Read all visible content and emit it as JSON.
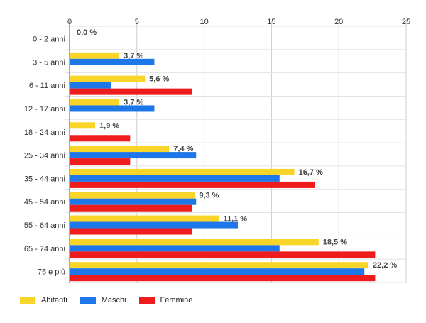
{
  "chart_data": {
    "type": "bar",
    "orientation": "horizontal",
    "categories": [
      "0 - 2 anni",
      "3 - 5 anni",
      "6 - 11 anni",
      "12 - 17 anni",
      "18 - 24 anni",
      "25 - 34 anni",
      "35 - 44 anni",
      "45 - 54 anni",
      "55 - 64 anni",
      "65 - 74 anni",
      "75 e più"
    ],
    "series": [
      {
        "name": "Abitanti",
        "color": "#f9d52a",
        "values": [
          0.0,
          3.7,
          5.6,
          3.7,
          1.9,
          7.4,
          16.7,
          9.3,
          11.1,
          18.5,
          22.2
        ]
      },
      {
        "name": "Maschi",
        "color": "#1e77e8",
        "values": [
          0.0,
          6.3,
          3.1,
          6.3,
          0.0,
          9.4,
          15.6,
          9.4,
          12.5,
          15.6,
          21.9
        ]
      },
      {
        "name": "Femmine",
        "color": "#ee1c1c",
        "values": [
          0.0,
          0.0,
          9.1,
          0.0,
          4.5,
          4.5,
          18.2,
          9.1,
          9.1,
          22.7,
          22.7
        ]
      }
    ],
    "data_labels": [
      "0,0 %",
      "3,7 %",
      "5,6 %",
      "3,7 %",
      "1,9 %",
      "7,4 %",
      "16,7 %",
      "9,3 %",
      "11,1 %",
      "18,5 %",
      "22,2 %"
    ],
    "xlim": [
      0,
      25
    ],
    "xticks": [
      0,
      5,
      10,
      15,
      20,
      25
    ],
    "xtick_labels": [
      "0",
      "5",
      "10",
      "15",
      "20",
      "25"
    ],
    "title": "",
    "xlabel": "",
    "ylabel": "",
    "grid": true,
    "legend_position": "bottom-left"
  }
}
